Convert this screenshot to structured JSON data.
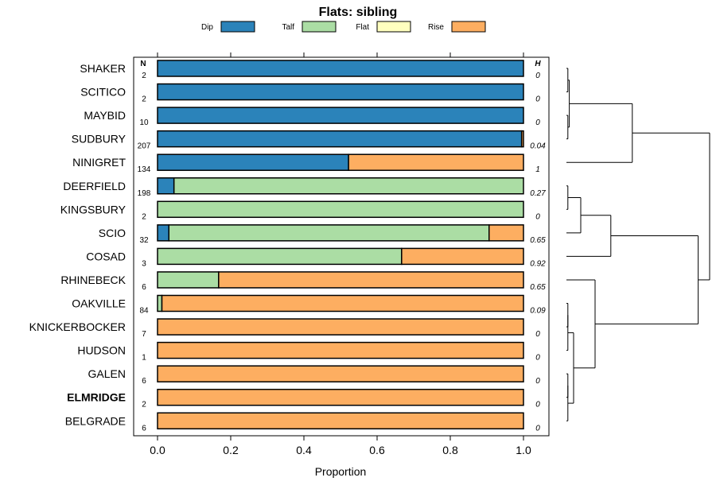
{
  "chart_data": {
    "type": "bar",
    "orientation": "horizontal",
    "stacked": true,
    "title": "Flats: sibling",
    "xlabel": "Proportion",
    "xlim": [
      0,
      1
    ],
    "xticks": [
      "0.0",
      "0.2",
      "0.4",
      "0.6",
      "0.8",
      "1.0"
    ],
    "xtick_values": [
      0,
      0.2,
      0.4,
      0.6,
      0.8,
      1.0
    ],
    "n_header": "N",
    "h_header": "H",
    "legend": [
      {
        "name": "Dip",
        "color": "#2b83ba"
      },
      {
        "name": "Talf",
        "color": "#abdda4"
      },
      {
        "name": "Flat",
        "color": "#ffffbf"
      },
      {
        "name": "Rise",
        "color": "#fdae61"
      }
    ],
    "categories": [
      "SHAKER",
      "SCITICO",
      "MAYBID",
      "SUDBURY",
      "NINIGRET",
      "DEERFIELD",
      "KINGSBURY",
      "SCIO",
      "COSAD",
      "RHINEBECK",
      "OAKVILLE",
      "KNICKERBOCKER",
      "HUDSON",
      "GALEN",
      "ELMRIDGE",
      "BELGRADE"
    ],
    "highlighted": "ELMRIDGE",
    "n": [
      "2",
      "2",
      "10",
      "207",
      "134",
      "198",
      "2",
      "32",
      "3",
      "6",
      "84",
      "7",
      "1",
      "6",
      "2",
      "6"
    ],
    "h": [
      "0",
      "0",
      "0",
      "0.04",
      "1",
      "0.27",
      "0",
      "0.65",
      "0.92",
      "0.65",
      "0.09",
      "0",
      "0",
      "0",
      "0",
      "0"
    ],
    "series": [
      {
        "name": "Dip",
        "values": [
          1,
          1,
          1,
          0.995,
          0.522,
          0.045,
          0,
          0.031,
          0,
          0,
          0,
          0,
          0,
          0,
          0,
          0
        ]
      },
      {
        "name": "Talf",
        "values": [
          0,
          0,
          0,
          0,
          0,
          0.955,
          1,
          0.875,
          0.667,
          0.167,
          0.012,
          0,
          0,
          0,
          0,
          0
        ]
      },
      {
        "name": "Flat",
        "values": [
          0,
          0,
          0,
          0,
          0,
          0,
          0,
          0,
          0,
          0,
          0,
          0,
          0,
          0,
          0,
          0
        ]
      },
      {
        "name": "Rise",
        "values": [
          0,
          0,
          0,
          0.005,
          0.478,
          0,
          0,
          0.094,
          0.333,
          0.833,
          0.988,
          1,
          1,
          1,
          1,
          1
        ]
      }
    ],
    "dendrogram": {
      "leaf_order": [
        "SHAKER",
        "SCITICO",
        "MAYBID",
        "SUDBURY",
        "NINIGRET",
        "DEERFIELD",
        "KINGSBURY",
        "SCIO",
        "COSAD",
        "RHINEBECK",
        "OAKVILLE",
        "KNICKERBOCKER",
        "HUDSON",
        "GALEN",
        "ELMRIDGE",
        "BELGRADE"
      ],
      "merges": [
        {
          "a": "SHAKER",
          "b": "SCITICO",
          "height": 0.01
        },
        {
          "a": "MAYBID",
          "b": "SUDBURY",
          "height": 0.01
        },
        {
          "a": "m1",
          "b": "m2",
          "height": 0.02
        },
        {
          "a": "m3",
          "b": "NINIGRET",
          "height": 0.46
        },
        {
          "a": "DEERFIELD",
          "b": "KINGSBURY",
          "height": 0.01
        },
        {
          "a": "m5",
          "b": "SCIO",
          "height": 0.1
        },
        {
          "a": "m6",
          "b": "COSAD",
          "height": 0.31
        },
        {
          "a": "GALEN",
          "b": "ELMRIDGE",
          "height": 0.01
        },
        {
          "a": "m8",
          "b": "BELGRADE",
          "height": 0.01
        },
        {
          "a": "OAKVILLE",
          "b": "KNICKERBOCKER",
          "height": 0.01
        },
        {
          "a": "m10",
          "b": "HUDSON",
          "height": 0.01
        },
        {
          "a": "m11",
          "b": "m9",
          "height": 0.05
        },
        {
          "a": "RHINEBECK",
          "b": "m12",
          "height": 0.2
        },
        {
          "a": "m7",
          "b": "m13",
          "height": 0.92
        },
        {
          "a": "m4",
          "b": "m14",
          "height": 1.0
        }
      ]
    }
  }
}
